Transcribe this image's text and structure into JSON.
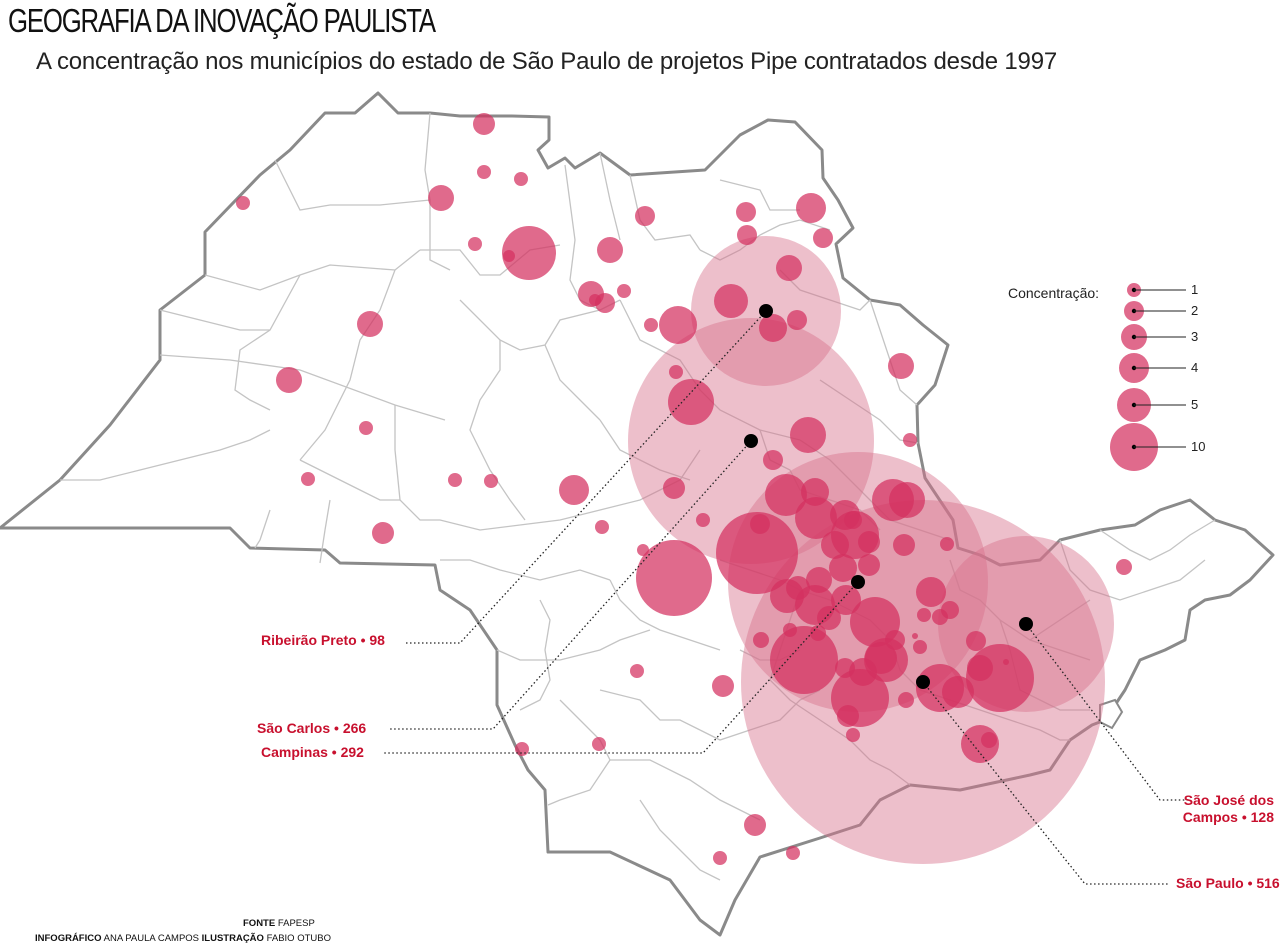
{
  "title": "GEOGRAFIA DA INOVAÇÃO PAULISTA",
  "subtitle": "A concentração nos municípios do estado de São Paulo de projetos Pipe contratados desde 1997",
  "legend": {
    "title": "Concentração:",
    "items": [
      {
        "label": "1",
        "value": 1
      },
      {
        "label": "2",
        "value": 2
      },
      {
        "label": "3",
        "value": 3
      },
      {
        "label": "4",
        "value": 4
      },
      {
        "label": "5",
        "value": 5
      },
      {
        "label": "10",
        "value": 10
      }
    ]
  },
  "cities": [
    {
      "name": "Ribeirão Preto",
      "value": 98,
      "label": "Ribeirão Preto • 98"
    },
    {
      "name": "São Carlos",
      "value": 266,
      "label": "São Carlos • 266"
    },
    {
      "name": "Campinas",
      "value": 292,
      "label": "Campinas • 292"
    },
    {
      "name": "São José dos Campos",
      "value": 128,
      "label_line1": "São José dos",
      "label_line2": "Campos • 128"
    },
    {
      "name": "São Paulo",
      "value": 516,
      "label": "São Paulo • 516"
    }
  ],
  "credits": {
    "source_key": "FONTE",
    "source_val": "FAPESP",
    "info_key": "INFOGRÁFICO",
    "info_val": "ANA PAULA CAMPOS",
    "illus_key": "ILUSTRAÇÃO",
    "illus_val": "FABIO OTUBO"
  },
  "colors": {
    "bubble": "#d4315f",
    "big_bubble": "#d6708c",
    "label": "#c8102e",
    "outline": "#8a8a8a",
    "borders": "#bdbdbd"
  }
}
